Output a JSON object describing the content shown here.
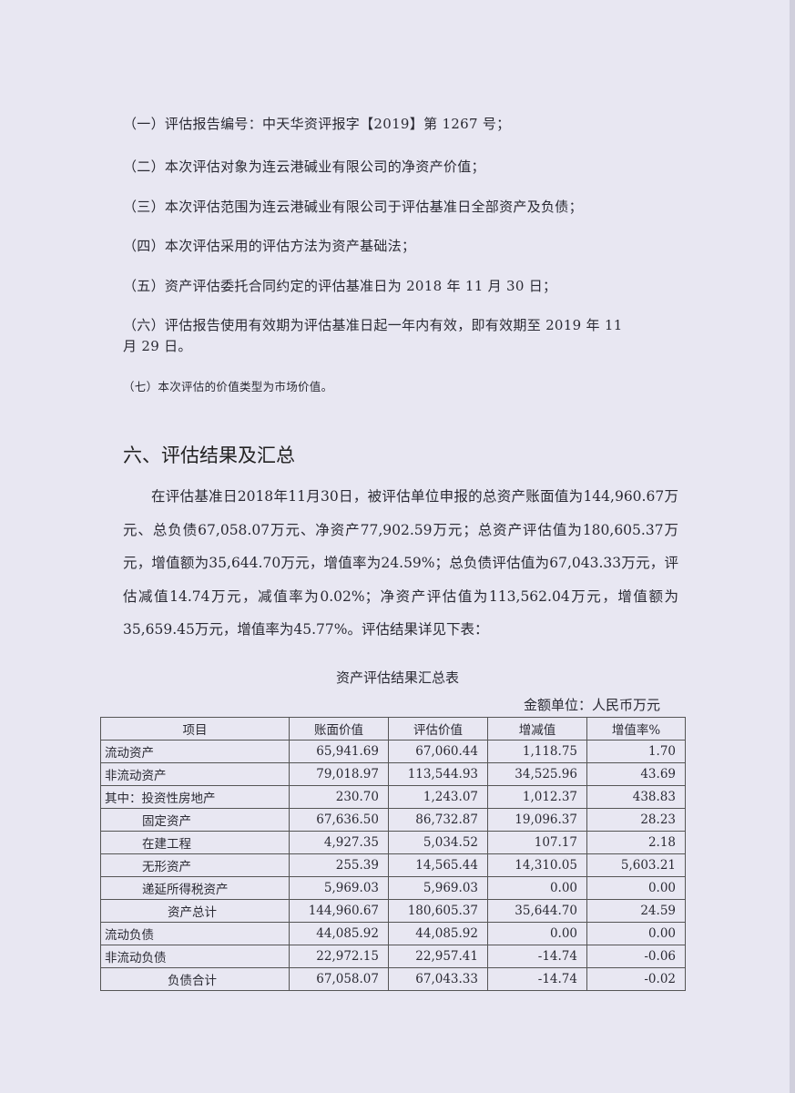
{
  "items": [
    "（一）评估报告编号：中天华资评报字【2019】第 1267 号；",
    "（二）本次评估对象为连云港碱业有限公司的净资产价值；",
    "（三）本次评估范围为连云港碱业有限公司于评估基准日全部资产及负债；",
    "（四）本次评估采用的评估方法为资产基础法；",
    "（五）资产评估委托合同约定的评估基准日为 2018 年 11 月 30 日；",
    "（六）评估报告使用有效期为评估基准日起一年内有效，即有效期至 2019 年 11",
    "月 29 日。",
    "（七）本次评估的价值类型为市场价值。"
  ],
  "section_heading": "六、评估结果及汇总",
  "paragraph": "在评估基准日2018年11月30日，被评估单位申报的总资产账面值为144,960.67万元、总负债67,058.07万元、净资产77,902.59万元；总资产评估值为180,605.37万元，增值额为35,644.70万元，增值率为24.59%；总负债评估值为67,043.33万元，评估减值14.74万元，减值率为0.02%；净资产评估值为113,562.04万元，增值额为35,659.45万元，增值率为45.77%。评估结果详见下表：",
  "table": {
    "caption": "资产评估结果汇总表",
    "unit": "金额单位：人民币万元",
    "headers": [
      "项目",
      "账面价值",
      "评估价值",
      "增减值",
      "增值率%"
    ],
    "rows": [
      [
        "流动资产",
        "65,941.69",
        "67,060.44",
        "1,118.75",
        "1.70"
      ],
      [
        "非流动资产",
        "79,018.97",
        "113,544.93",
        "34,525.96",
        "43.69"
      ],
      [
        "其中：投资性房地产",
        "230.70",
        "1,243.07",
        "1,012.37",
        "438.83"
      ],
      [
        "固定资产",
        "67,636.50",
        "86,732.87",
        "19,096.37",
        "28.23"
      ],
      [
        "在建工程",
        "4,927.35",
        "5,034.52",
        "107.17",
        "2.18"
      ],
      [
        "无形资产",
        "255.39",
        "14,565.44",
        "14,310.05",
        "5,603.21"
      ],
      [
        "递延所得税资产",
        "5,969.03",
        "5,969.03",
        "0.00",
        "0.00"
      ],
      [
        "资产总计",
        "144,960.67",
        "180,605.37",
        "35,644.70",
        "24.59"
      ],
      [
        "流动负债",
        "44,085.92",
        "44,085.92",
        "0.00",
        "0.00"
      ],
      [
        "非流动负债",
        "22,972.15",
        "22,957.41",
        "-14.74",
        "-0.06"
      ],
      [
        "负债合计",
        "67,058.07",
        "67,043.33",
        "-14.74",
        "-0.02"
      ]
    ]
  }
}
